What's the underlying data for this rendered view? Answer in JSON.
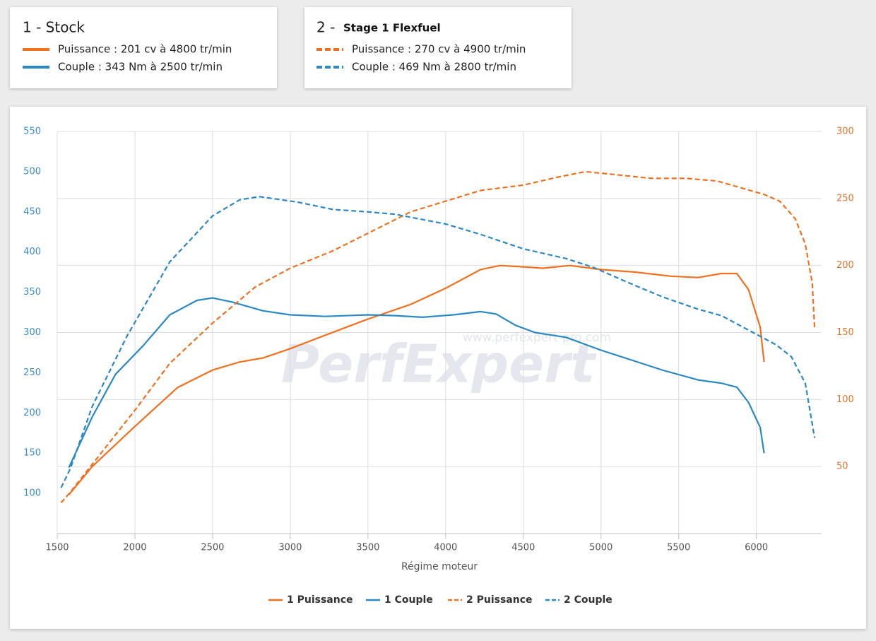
{
  "cards": [
    {
      "title": "1 - Stock",
      "items": [
        "Puissance : 201 cv à 4800 tr/min",
        "Couple : 343 Nm à 2500 tr/min"
      ]
    },
    {
      "title": "2 -",
      "subtitle": "Stage 1 Flexfuel",
      "items": [
        "Puissance : 270 cv à 4900 tr/min",
        "Couple : 469 Nm à 2800 tr/min"
      ]
    }
  ],
  "watermark": {
    "brand": "PerfExpert",
    "url": "www.perfexpert-pro.com"
  },
  "chart_data": {
    "type": "line",
    "x_label": "Régime moteur",
    "grid": true,
    "legend": "bottom",
    "xlim": [
      1500,
      6420
    ],
    "xticks": [
      1500,
      2000,
      2500,
      3000,
      3500,
      4000,
      4500,
      5000,
      5500,
      6000
    ],
    "ylim": [
      50,
      550
    ],
    "yticks": [
      100,
      150,
      200,
      250,
      300,
      350,
      400,
      450,
      500,
      550
    ],
    "y2lim": [
      0,
      300
    ],
    "y2ticks": [
      50,
      100,
      150,
      200,
      250,
      300
    ],
    "series": [
      {
        "name": "1 Puissance",
        "color": "#f0701e",
        "dashed": false,
        "axis": "y2",
        "x": [
          1575,
          1725,
          2000,
          2275,
          2500,
          2675,
          2825,
          3000,
          3225,
          3500,
          3775,
          4000,
          4225,
          4350,
          4500,
          4625,
          4800,
          5000,
          5225,
          5450,
          5625,
          5775,
          5875,
          5950,
          6025,
          6050
        ],
        "values": [
          29,
          50,
          80,
          109,
          122,
          128,
          131,
          138,
          148,
          160,
          171,
          183,
          197,
          200,
          199,
          198,
          200,
          197,
          195,
          192,
          191,
          194,
          194,
          182,
          154,
          128
        ]
      },
      {
        "name": "1 Couple",
        "color": "#2a88c2",
        "dashed": false,
        "x": [
          1575,
          1725,
          1875,
          2050,
          2225,
          2400,
          2500,
          2625,
          2825,
          3000,
          3225,
          3500,
          3675,
          3850,
          4050,
          4225,
          4325,
          4450,
          4575,
          4775,
          5000,
          5225,
          5400,
          5625,
          5775,
          5875,
          5950,
          6025,
          6050
        ],
        "values": [
          132,
          195,
          248,
          283,
          322,
          340,
          343,
          338,
          327,
          322,
          320,
          322,
          321,
          319,
          322,
          326,
          323,
          309,
          300,
          294,
          278,
          264,
          253,
          241,
          237,
          232,
          213,
          182,
          150
        ]
      },
      {
        "name": "2 Puissance",
        "color": "#f0701e",
        "dashed": true,
        "axis": "y2",
        "x": [
          1525,
          1585,
          1775,
          2000,
          2225,
          2500,
          2775,
          3000,
          3275,
          3500,
          3775,
          4000,
          4225,
          4500,
          4725,
          4900,
          5075,
          5325,
          5550,
          5750,
          5900,
          6050,
          6150,
          6250,
          6315,
          6360,
          6375
        ],
        "values": [
          23,
          31,
          59,
          92,
          127,
          157,
          184,
          198,
          211,
          224,
          240,
          248,
          256,
          260,
          266,
          270,
          268,
          265,
          265,
          263,
          258,
          253,
          248,
          235,
          216,
          187,
          153
        ]
      },
      {
        "name": "2 Couple",
        "color": "#2a88c2",
        "dashed": true,
        "x": [
          1525,
          1585,
          1725,
          1950,
          2225,
          2500,
          2675,
          2800,
          3050,
          3275,
          3500,
          3675,
          4000,
          4225,
          4500,
          4775,
          4950,
          5225,
          5400,
          5625,
          5775,
          5950,
          6125,
          6225,
          6315,
          6375
        ],
        "values": [
          107,
          131,
          208,
          296,
          388,
          445,
          465,
          469,
          462,
          453,
          450,
          447,
          435,
          422,
          404,
          392,
          381,
          358,
          344,
          329,
          321,
          303,
          285,
          270,
          237,
          169
        ]
      }
    ]
  }
}
